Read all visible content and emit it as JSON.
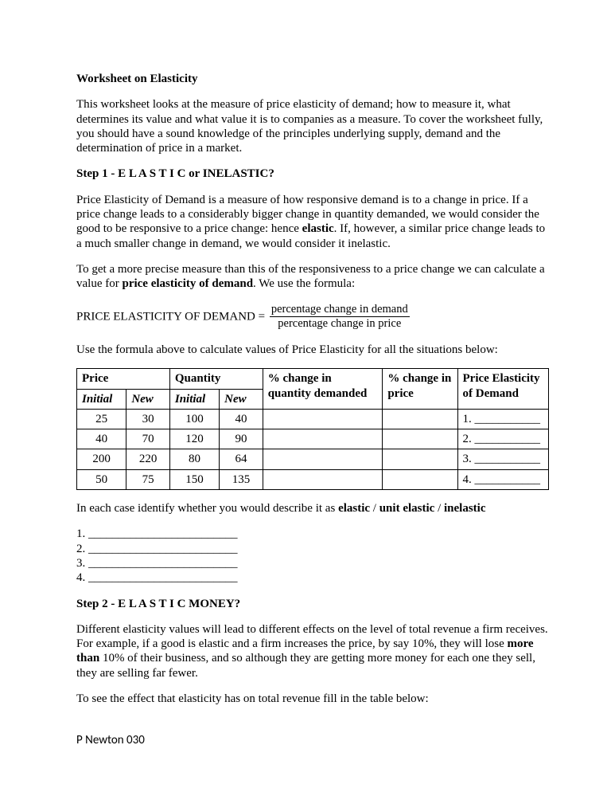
{
  "title": "Worksheet on Elasticity",
  "intro": "This worksheet looks at the measure of price elasticity of demand; how to measure it, what determines its value and what value it is to companies as a measure. To cover the worksheet fully, you should have a sound knowledge of the principles underlying supply, demand and the determination of price in a market.",
  "step1_heading": "Step 1 - E L A S T I C or INELASTIC?",
  "step1_p1_a": "Price Elasticity of Demand is a measure of how responsive demand is to a change in price. If a price change leads to a considerably bigger change in quantity demanded, we would consider the good to be responsive to a price change: hence ",
  "step1_p1_b_bold": "elastic",
  "step1_p1_c": ". If, however, a similar price change leads to a much smaller change in demand, we would consider it inelastic.",
  "step1_p2_a": "To get a more precise measure than this of the responsiveness to a price change we can calculate a value for ",
  "step1_p2_b_bold": "price elasticity of demand",
  "step1_p2_c": ". We use the formula:",
  "formula_lhs": "PRICE ELASTICITY OF DEMAND =",
  "formula_num": "percentage change in demand",
  "formula_den": "percentage change in price",
  "step1_p3": "Use the formula above to calculate values of Price Elasticity for all the situations below:",
  "table": {
    "head": {
      "price": "Price",
      "quantity": "Quantity",
      "pct_qty": "% change in quantity demanded",
      "pct_price": "% change in price",
      "ped": "Price Elasticity of Demand",
      "initial": "Initial",
      "new": "New"
    },
    "rows": [
      {
        "pi": "25",
        "pn": "30",
        "qi": "100",
        "qn": "40",
        "ped": "1. ___________"
      },
      {
        "pi": "40",
        "pn": "70",
        "qi": "120",
        "qn": "90",
        "ped": "2. ___________"
      },
      {
        "pi": "200",
        "pn": "220",
        "qi": "80",
        "qn": "64",
        "ped": "3. ___________"
      },
      {
        "pi": "50",
        "pn": "75",
        "qi": "150",
        "qn": "135",
        "ped": "4. ___________"
      }
    ]
  },
  "classify_a": "In each case identify whether you would describe it as ",
  "classify_b1": "elastic",
  "classify_s1": " / ",
  "classify_b2": "unit elastic",
  "classify_s2": " / ",
  "classify_b3": "inelastic",
  "answers": [
    "1. _________________________",
    "2. _________________________",
    "3. _________________________",
    "4. _________________________"
  ],
  "step2_heading": "Step 2 - E L A S T I C MONEY?",
  "step2_p1_a": "Different elasticity values will lead to different effects on the level of total revenue a firm receives. For example, if a good is elastic and a firm increases the price, by say 10%, they will lose ",
  "step2_p1_b_bold": "more than",
  "step2_p1_c": " 10% of their business, and so although they are getting more money for each one they sell, they are selling far fewer.",
  "step2_p2": "To see the effect that elasticity has on total revenue fill in the table below:",
  "footer": "P Newton 030"
}
